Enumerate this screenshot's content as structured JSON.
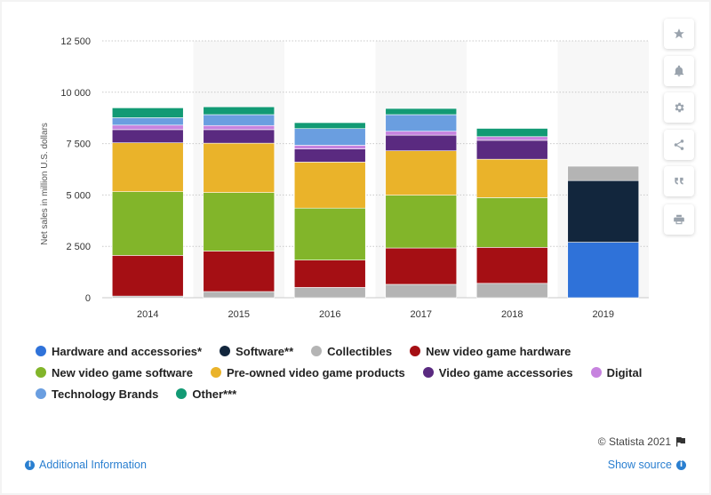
{
  "chart_data": {
    "type": "bar",
    "stacked": true,
    "categories": [
      "2014",
      "2015",
      "2016",
      "2017",
      "2018",
      "2019"
    ],
    "ylabel": "Net sales in million U.S. dollars",
    "ylim": [
      0,
      12500
    ],
    "yticks": [
      0,
      2500,
      5000,
      7500,
      10000,
      12500
    ],
    "ytick_labels": [
      "0",
      "2 500",
      "5 000",
      "7 500",
      "10 000",
      "12 500"
    ],
    "grid": true,
    "legend_position": "bottom",
    "series": [
      {
        "name": "Hardware and accessories*",
        "color": "#2f72d9",
        "values": [
          0,
          0,
          0,
          0,
          0,
          2700
        ]
      },
      {
        "name": "Software**",
        "color": "#12263d",
        "values": [
          0,
          0,
          0,
          0,
          0,
          3000
        ]
      },
      {
        "name": "Collectibles",
        "color": "#b4b4b4",
        "values": [
          80,
          300,
          500,
          650,
          700,
          700
        ]
      },
      {
        "name": "New video game hardware",
        "color": "#a50f14",
        "values": [
          1980,
          1970,
          1330,
          1770,
          1750,
          0
        ]
      },
      {
        "name": "New video game software",
        "color": "#82b52a",
        "values": [
          3100,
          2850,
          2530,
          2570,
          2420,
          0
        ]
      },
      {
        "name": "Pre-owned video game products",
        "color": "#eab32a",
        "values": [
          2380,
          2400,
          2240,
          2160,
          1870,
          0
        ]
      },
      {
        "name": "Video game accessories",
        "color": "#5a2a80",
        "values": [
          640,
          660,
          640,
          760,
          920,
          0
        ]
      },
      {
        "name": "Digital",
        "color": "#c783df",
        "values": [
          220,
          200,
          180,
          190,
          180,
          0
        ]
      },
      {
        "name": "Technology Brands",
        "color": "#6a9ee0",
        "values": [
          360,
          530,
          810,
          810,
          0,
          0
        ]
      },
      {
        "name": "Other***",
        "color": "#129a74",
        "values": [
          480,
          380,
          290,
          300,
          400,
          0
        ]
      }
    ]
  },
  "legend": {
    "rows": [
      [
        0,
        1,
        2,
        3
      ],
      [
        4,
        5,
        6,
        7
      ],
      [
        8,
        9
      ]
    ]
  },
  "sidebar": {
    "buttons": [
      {
        "name": "favorite-star-icon"
      },
      {
        "name": "notification-bell-icon"
      },
      {
        "name": "settings-gear-icon"
      },
      {
        "name": "share-icon"
      },
      {
        "name": "cite-quote-icon"
      },
      {
        "name": "print-icon"
      }
    ]
  },
  "footer": {
    "credit": "© Statista 2021",
    "additional_info": "Additional Information",
    "show_source": "Show source"
  }
}
